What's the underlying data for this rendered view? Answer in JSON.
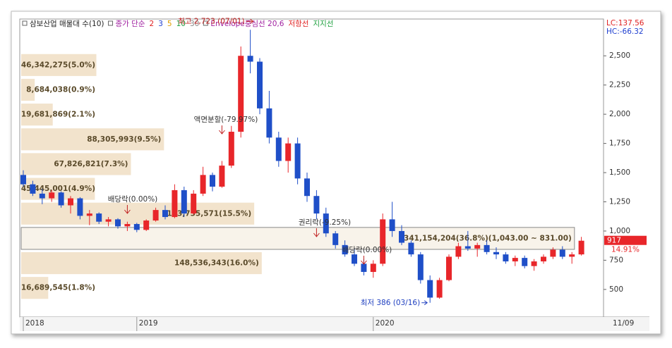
{
  "chart_data": {
    "type": "candlestick",
    "legend": [
      {
        "text": "삼보산업 매물대 수(10)",
        "color": "#222222"
      },
      {
        "text": "종가 단순",
        "color": "#a020a0"
      },
      {
        "text": "2",
        "color": "#e02020"
      },
      {
        "text": "3",
        "color": "#2040d0"
      },
      {
        "text": "5",
        "color": "#e0a000"
      },
      {
        "text": "10",
        "color": "#20a040"
      },
      {
        "text": "30",
        "color": "#888888"
      },
      {
        "text": "Envelope중심선 20,6",
        "color": "#a020a0"
      },
      {
        "text": "저항선",
        "color": "#e02020"
      },
      {
        "text": "지지선",
        "color": "#20a040"
      }
    ],
    "lc_label": "LC:137.56",
    "hc_label": "HC:-66.32",
    "categories": [
      "2018",
      null,
      null,
      null,
      null,
      null,
      null,
      null,
      null,
      null,
      null,
      null,
      "2019",
      null,
      null,
      null,
      null,
      null,
      null,
      null,
      null,
      null,
      null,
      null,
      null,
      null,
      null,
      null,
      null,
      null,
      null,
      null,
      null,
      null,
      null,
      null,
      null,
      "2020",
      null,
      null,
      null,
      null,
      null,
      null,
      null,
      null,
      null,
      null,
      null,
      null,
      null,
      null,
      null,
      null,
      null,
      null,
      null,
      null,
      null,
      null
    ],
    "end_date_label": "11/09",
    "open": [
      1480,
      1400,
      1320,
      1280,
      1330,
      1220,
      1280,
      1130,
      1150,
      1080,
      1100,
      1040,
      1060,
      1010,
      1090,
      1180,
      1120,
      1350,
      1150,
      1320,
      1480,
      1380,
      1560,
      1850,
      2500,
      2450,
      2050,
      1800,
      1600,
      1750,
      1450,
      1300,
      1150,
      980,
      880,
      800,
      720,
      650,
      720,
      1100,
      1000,
      900,
      800,
      580,
      430,
      580,
      780,
      870,
      850,
      880,
      820,
      800,
      740,
      770,
      700,
      740,
      780,
      840,
      780,
      800
    ],
    "high": [
      1520,
      1430,
      1360,
      1350,
      1340,
      1300,
      1290,
      1180,
      1160,
      1120,
      1110,
      1080,
      1070,
      1100,
      1200,
      1220,
      1400,
      1380,
      1350,
      1550,
      1500,
      1600,
      1900,
      2580,
      2723,
      2480,
      2200,
      1850,
      1800,
      1800,
      1500,
      1350,
      1200,
      1000,
      920,
      850,
      760,
      750,
      1150,
      1250,
      1050,
      920,
      820,
      620,
      600,
      800,
      900,
      1000,
      900,
      920,
      860,
      820,
      790,
      790,
      760,
      800,
      860,
      870,
      820,
      950
    ],
    "low": [
      1380,
      1300,
      1230,
      1250,
      1200,
      1150,
      1100,
      1050,
      1060,
      1040,
      1020,
      1000,
      990,
      1000,
      1080,
      1100,
      1110,
      1120,
      1140,
      1300,
      1340,
      1370,
      1540,
      1800,
      2350,
      2000,
      1750,
      1550,
      1500,
      1400,
      1250,
      1100,
      950,
      850,
      780,
      700,
      620,
      600,
      700,
      950,
      880,
      780,
      550,
      386,
      420,
      570,
      760,
      830,
      780,
      800,
      760,
      720,
      700,
      680,
      660,
      720,
      760,
      760,
      720,
      790
    ],
    "close": [
      1400,
      1320,
      1280,
      1330,
      1220,
      1280,
      1130,
      1150,
      1080,
      1100,
      1040,
      1060,
      1010,
      1090,
      1180,
      1120,
      1350,
      1150,
      1320,
      1480,
      1380,
      1560,
      1850,
      2500,
      2450,
      2050,
      1800,
      1600,
      1750,
      1450,
      1300,
      1150,
      980,
      880,
      800,
      720,
      650,
      720,
      1100,
      1000,
      900,
      800,
      580,
      430,
      580,
      780,
      870,
      850,
      880,
      820,
      800,
      740,
      770,
      700,
      740,
      780,
      840,
      780,
      800,
      917
    ],
    "up_color": "#e8262a",
    "down_color": "#1f4fc8",
    "ylim": [
      264,
      2815
    ],
    "yticks": [
      {
        "value": 500,
        "label": "500"
      },
      {
        "value": 750,
        "label": "750"
      },
      {
        "value": 1000,
        "label": "1,000"
      },
      {
        "value": 1250,
        "label": "1,250"
      },
      {
        "value": 1500,
        "label": "1,500"
      },
      {
        "value": 1750,
        "label": "1,750"
      },
      {
        "value": 2000,
        "label": "2,000"
      },
      {
        "value": 2250,
        "label": "2,250"
      },
      {
        "value": 2500,
        "label": "2,500"
      }
    ],
    "current_price": 917,
    "current_change": "14.91%",
    "annotations": {
      "high": "최고 2,723 (07/01)",
      "low": "최저 386 (03/16)",
      "split": "액면분할(-79.97%)",
      "dividend1": "배당락(0.00%)",
      "rights": "권리락(-9.25%)",
      "dividend2": "배당락(0.00%)"
    },
    "volume_profile": {
      "low": [
        2315,
        2103,
        1891,
        1679,
        1467,
        1255,
        1043,
        831,
        619,
        407
      ],
      "high": [
        2527,
        2315,
        2103,
        1891,
        1679,
        1467,
        1255,
        1043,
        831,
        619
      ],
      "volumes": [
        46342275,
        8684038,
        19681869,
        88305993,
        67826821,
        45445001,
        143735571,
        341154204,
        148536343,
        16689545
      ],
      "shares": [
        5.0,
        0.9,
        2.1,
        9.5,
        7.3,
        4.9,
        15.5,
        36.8,
        16.0,
        1.8
      ],
      "value_labels": [
        "46,342,275(5.0%)",
        "8,684,038(0.9%)",
        "19,681,869(2.1%)",
        "88,305,993(9.5%)",
        "67,826,821(7.3%)",
        "45,445,001(4.9%)",
        "143,735,571(15.5%)",
        "341,154,204(36.8%)(1,043.00 ~ 831.00)",
        "148,536,343(16.0%)",
        "16,689,545(1.8%)"
      ],
      "color": "#f2e3cc",
      "highlight_color": "#f8f3ea"
    }
  }
}
